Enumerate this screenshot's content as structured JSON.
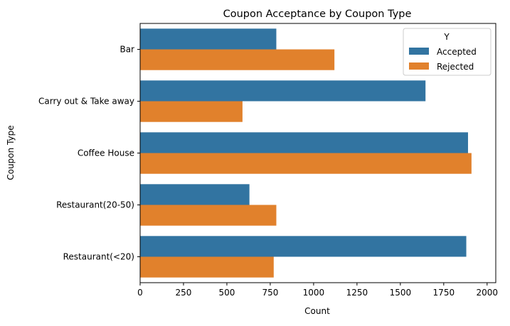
{
  "chart_data": {
    "type": "bar",
    "orientation": "horizontal",
    "title": "Coupon Acceptance by Coupon Type",
    "xlabel": "Count",
    "ylabel": "Coupon Type",
    "xlim": [
      0,
      2050
    ],
    "xticks": [
      0,
      250,
      500,
      750,
      1000,
      1250,
      1500,
      1750,
      2000
    ],
    "categories": [
      "Bar",
      "Carry out & Take away",
      "Coffee House",
      "Restaurant(20-50)",
      "Restaurant(<20)"
    ],
    "series": [
      {
        "name": "Accepted",
        "color": "#3274a1",
        "values": [
          785,
          1645,
          1890,
          630,
          1880
        ]
      },
      {
        "name": "Rejected",
        "color": "#e1812c",
        "values": [
          1120,
          590,
          1910,
          785,
          770
        ]
      }
    ],
    "legend": {
      "title": "Y",
      "placement": "top-right"
    },
    "grid": false
  }
}
